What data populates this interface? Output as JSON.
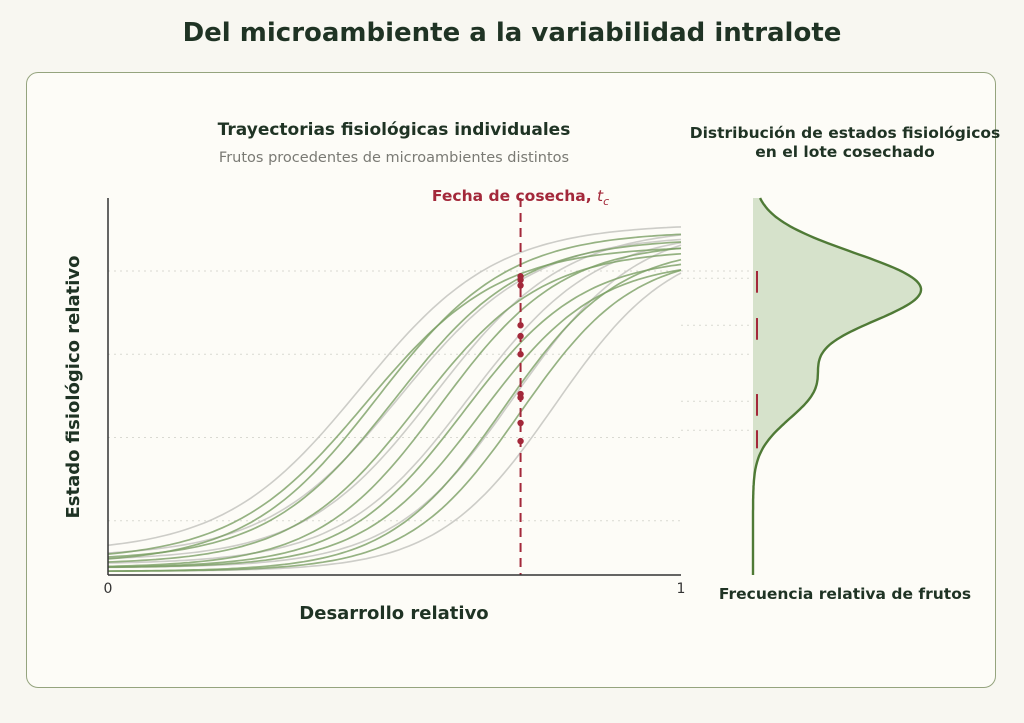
{
  "title": "Del microambiente a la variabilidad intralote",
  "chart_data": [
    {
      "type": "line",
      "title": "Trayectorias fisiológicas individuales",
      "subtitle": "Frutos procedentes de microambientes distintos",
      "xlabel": "Desarrollo relativo",
      "ylabel": "Estado fisiológico relativo",
      "xlim": [
        0,
        1
      ],
      "ylim": [
        0,
        1
      ],
      "x_ticks": [
        "0",
        "1"
      ],
      "harvest_label": "Fecha de cosecha, ",
      "harvest_symbol": "t",
      "harvest_subscript": "c",
      "harvest_x": 0.72,
      "grid": "horizontal dotted",
      "colors": {
        "green": "#7a9f64",
        "gray": "#c4c4bf",
        "harvest": "#a3283a",
        "axis": "#333333"
      },
      "series": [
        {
          "group": "green",
          "midpoint": 0.45,
          "steepness": 8.6,
          "min": 0.04,
          "max": 0.91
        },
        {
          "group": "green",
          "midpoint": 0.47,
          "steepness": 8.8,
          "min": 0.03,
          "max": 0.95
        },
        {
          "group": "green",
          "midpoint": 0.5,
          "steepness": 9.0,
          "min": 0.04,
          "max": 0.93
        },
        {
          "group": "green",
          "midpoint": 0.54,
          "steepness": 9.2,
          "min": 0.03,
          "max": 0.9
        },
        {
          "group": "green",
          "midpoint": 0.58,
          "steepness": 9.4,
          "min": 0.02,
          "max": 0.92
        },
        {
          "group": "green",
          "midpoint": 0.62,
          "steepness": 9.6,
          "min": 0.02,
          "max": 0.88
        },
        {
          "group": "green",
          "midpoint": 0.65,
          "steepness": 9.8,
          "min": 0.02,
          "max": 0.87
        },
        {
          "group": "green",
          "midpoint": 0.69,
          "steepness": 10.0,
          "min": 0.01,
          "max": 0.91
        },
        {
          "group": "green",
          "midpoint": 0.72,
          "steepness": 10.2,
          "min": 0.01,
          "max": 0.89
        },
        {
          "group": "gray",
          "midpoint": 0.44,
          "steepness": 8.4,
          "min": 0.06,
          "max": 0.97
        },
        {
          "group": "gray",
          "midpoint": 0.51,
          "steepness": 8.6,
          "min": 0.05,
          "max": 0.94
        },
        {
          "group": "gray",
          "midpoint": 0.57,
          "steepness": 8.8,
          "min": 0.04,
          "max": 0.96
        },
        {
          "group": "gray",
          "midpoint": 0.63,
          "steepness": 9.0,
          "min": 0.03,
          "max": 0.95
        },
        {
          "group": "gray",
          "midpoint": 0.71,
          "steepness": 9.4,
          "min": 0.02,
          "max": 0.97
        },
        {
          "group": "gray",
          "midpoint": 0.78,
          "steepness": 9.8,
          "min": 0.01,
          "max": 0.93
        }
      ],
      "harvest_points": [
        0.825,
        0.815,
        0.8,
        0.69,
        0.66,
        0.61,
        0.5,
        0.49,
        0.42,
        0.37
      ]
    },
    {
      "type": "area",
      "title_line1": "Distribución de estados fisiológicos",
      "title_line2": "en el lote cosechado",
      "xlabel": "Frecuencia relativa de frutos",
      "colors": {
        "fill": "#d6e2cb",
        "line": "#4f7a36",
        "marker": "#a3283a"
      },
      "components": [
        {
          "mean": 0.79,
          "sd": 0.1,
          "weight": 1.0
        },
        {
          "mean": 0.52,
          "sd": 0.09,
          "weight": 0.35
        }
      ],
      "markers": [
        {
          "from": 0.78,
          "to": 0.84
        },
        {
          "from": 0.65,
          "to": 0.71
        },
        {
          "from": 0.44,
          "to": 0.5
        },
        {
          "from": 0.35,
          "to": 0.4
        }
      ]
    }
  ]
}
